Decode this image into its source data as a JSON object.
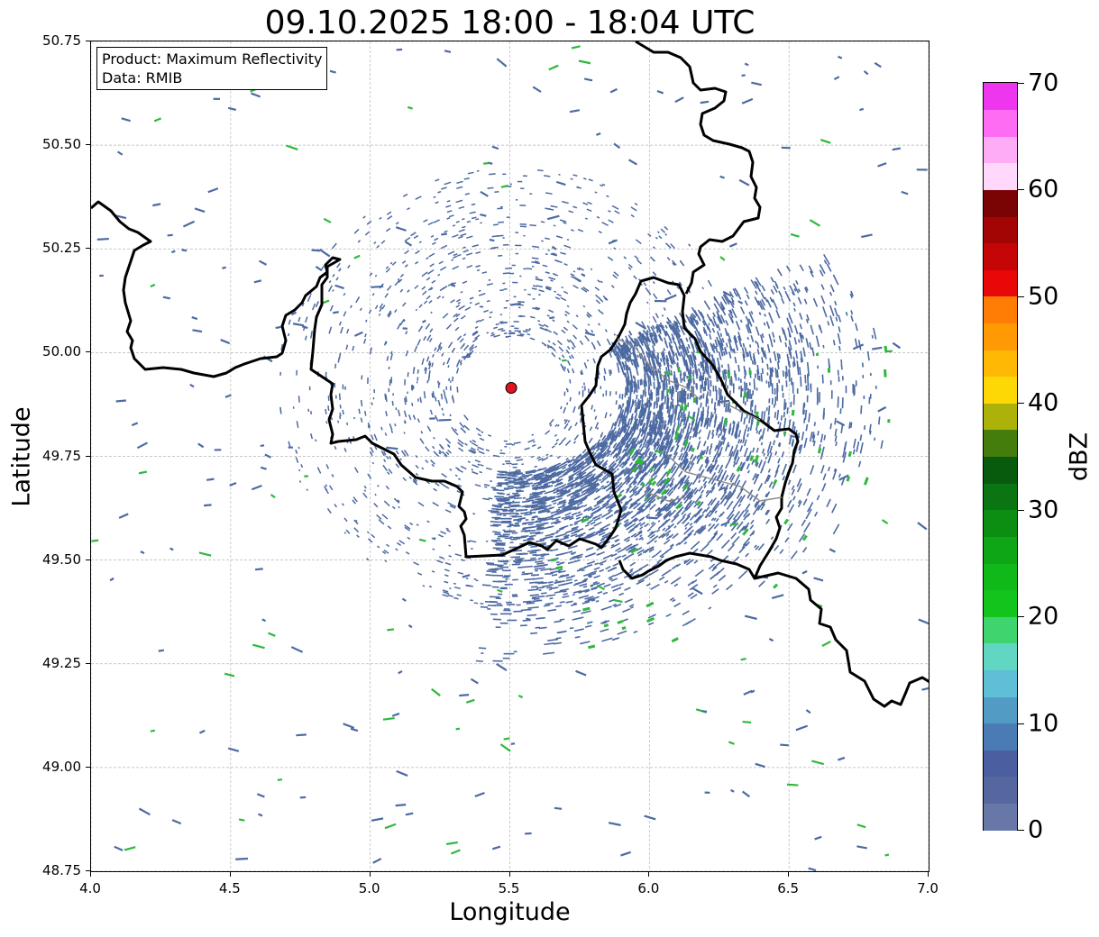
{
  "title": "09.10.2025 18:00 - 18:04 UTC",
  "info_box": {
    "product": "Product: Maximum Reflectivity",
    "data": "Data: RMIB"
  },
  "axes": {
    "xlabel": "Longitude",
    "ylabel": "Latitude",
    "x_ticks": [
      "4.0",
      "4.5",
      "5.0",
      "5.5",
      "6.0",
      "6.5",
      "7.0"
    ],
    "y_ticks": [
      "50.75",
      "50.50",
      "50.25",
      "50.00",
      "49.75",
      "49.50",
      "49.25",
      "49.00",
      "48.75"
    ],
    "xlim": [
      4.0,
      7.0
    ],
    "ylim": [
      48.75,
      50.75
    ],
    "grid": true
  },
  "radar_site": {
    "lon": 5.505,
    "lat": 49.915,
    "color": "#e0141e"
  },
  "colorbar": {
    "unit": "dBZ",
    "tick_labels": [
      "0",
      "10",
      "20",
      "30",
      "40",
      "50",
      "60",
      "70"
    ],
    "range": [
      0,
      70
    ],
    "colors": [
      "#6677a8",
      "#56669f",
      "#4a5ea0",
      "#4b7bb4",
      "#529bc4",
      "#5fbfd6",
      "#60d6c3",
      "#3fd46e",
      "#12c41c",
      "#10b81a",
      "#0ea516",
      "#0b8e12",
      "#0a7512",
      "#085b0c",
      "#457d0d",
      "#adb20b",
      "#fed805",
      "#ffb905",
      "#ff9a05",
      "#ff7d05",
      "#e80808",
      "#c40606",
      "#a30505",
      "#7a0303",
      "#ffd8fc",
      "#ffacf7",
      "#ff6cf4",
      "#ef36ef"
    ]
  },
  "colors": {
    "echo_weak": "#4d6aa2",
    "echo_green": "#2fb83c",
    "border": "#000000",
    "grid": "#b5b5b5"
  }
}
